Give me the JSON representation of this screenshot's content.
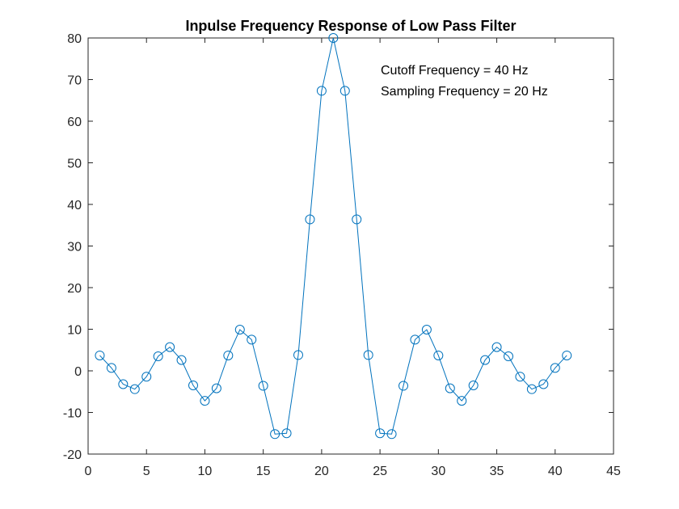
{
  "chart_data": {
    "type": "line",
    "title": "Inpulse Frequency Response of Low Pass Filter",
    "xlabel": "",
    "ylabel": "",
    "xlim": [
      0,
      45
    ],
    "ylim": [
      -20,
      80
    ],
    "xticks": [
      0,
      5,
      10,
      15,
      20,
      25,
      30,
      35,
      40,
      45
    ],
    "yticks": [
      -20,
      -10,
      0,
      10,
      20,
      30,
      40,
      50,
      60,
      70,
      80
    ],
    "xtick_labels": [
      "0",
      "5",
      "10",
      "15",
      "20",
      "25",
      "30",
      "35",
      "40",
      "45"
    ],
    "ytick_labels": [
      "-20",
      "-10",
      "0",
      "10",
      "20",
      "30",
      "40",
      "50",
      "60",
      "70",
      "80"
    ],
    "grid": false,
    "marker": "circle",
    "line_color": "#0072bd",
    "annotations": [
      "Cutoff Frequency = 40 Hz",
      "Sampling Frequency = 20 Hz"
    ],
    "series": [
      {
        "x": [
          1,
          2,
          3,
          4,
          5,
          6,
          7,
          8,
          9,
          10,
          11,
          12,
          13,
          14,
          15,
          16,
          17,
          18,
          19,
          20,
          21,
          22,
          23,
          24,
          25,
          26,
          27,
          28,
          29,
          30,
          31,
          32,
          33,
          34,
          35,
          36,
          37,
          38,
          39,
          40,
          41
        ],
        "values": [
          3.7,
          0.7,
          -3.2,
          -4.4,
          -1.4,
          3.5,
          5.7,
          2.6,
          -3.5,
          -7.2,
          -4.2,
          3.7,
          9.9,
          7.5,
          -3.6,
          -15.2,
          -15.0,
          3.8,
          36.4,
          67.3,
          80.0,
          67.3,
          36.4,
          3.8,
          -15.0,
          -15.2,
          -3.6,
          7.5,
          9.9,
          3.7,
          -4.2,
          -7.2,
          -3.5,
          2.6,
          5.7,
          3.5,
          -1.4,
          -4.4,
          -3.2,
          0.7,
          3.7
        ]
      }
    ]
  }
}
